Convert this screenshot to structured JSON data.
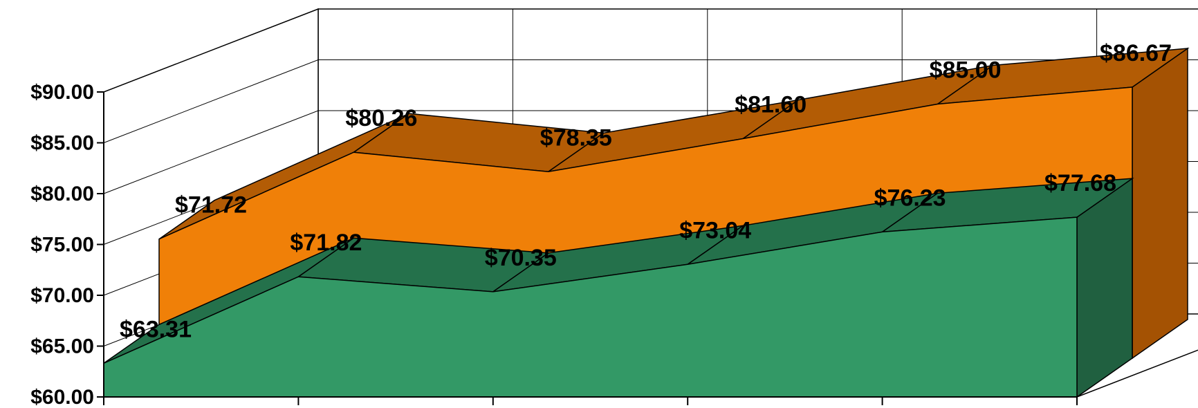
{
  "chart_data": {
    "type": "area",
    "three_d": true,
    "y_axis": {
      "min": 60,
      "max": 90,
      "step": 5,
      "tick_labels": [
        "$60.00",
        "$65.00",
        "$70.00",
        "$75.00",
        "$80.00",
        "$85.00",
        "$90.00"
      ]
    },
    "grid": true,
    "legend": "none",
    "series": [
      {
        "values": [
          63.31,
          71.82,
          70.35,
          73.04,
          76.23,
          77.68
        ],
        "labels": [
          "$63.31",
          "$71.82",
          "$70.35",
          "$73.04",
          "$76.23",
          "$77.68"
        ],
        "color_front": "#339966",
        "color_top": "#24714B",
        "color_side": "#206040"
      },
      {
        "values": [
          71.72,
          80.26,
          78.35,
          81.6,
          85.0,
          86.67
        ],
        "labels": [
          "$71.72",
          "$80.26",
          "$78.35",
          "$81.60",
          "$85.00",
          "$86.67"
        ],
        "color_front": "#F08008",
        "color_top": "#B35C05",
        "color_side": "#A45203"
      }
    ]
  }
}
